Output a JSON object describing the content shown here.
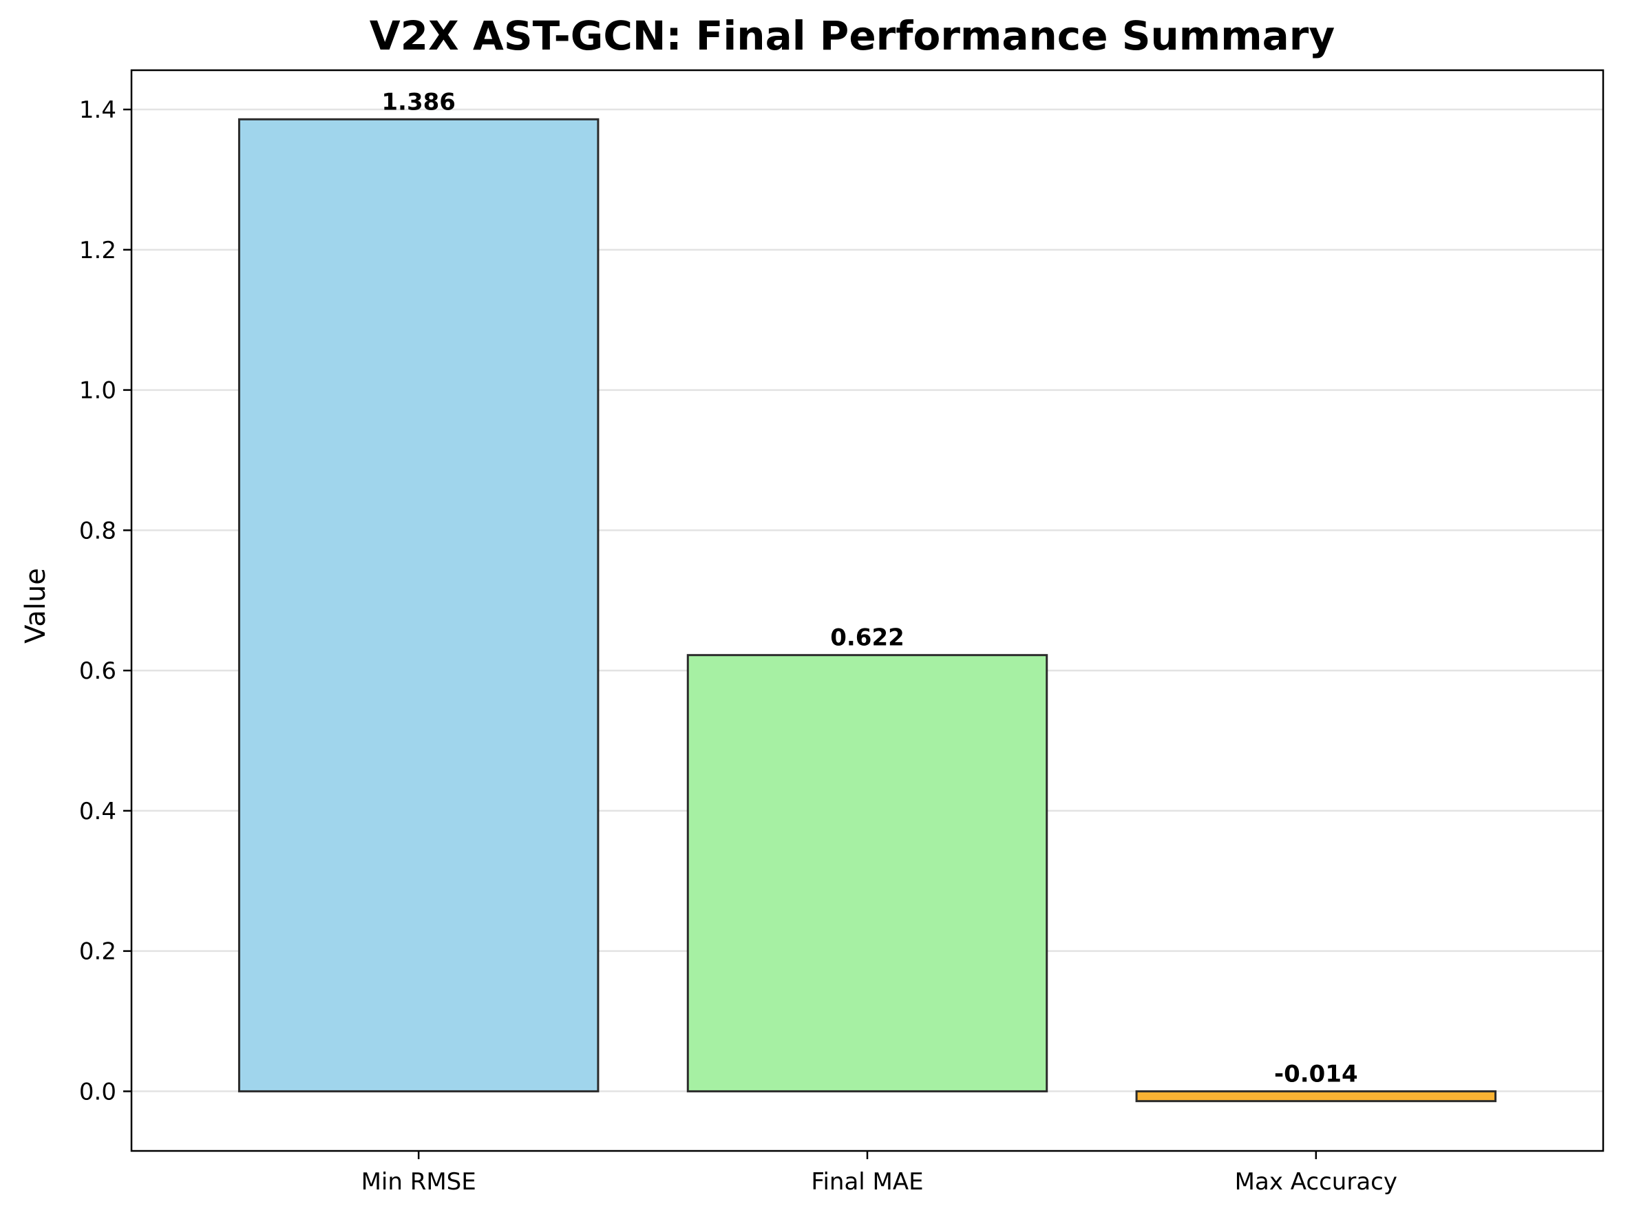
{
  "chart_data": {
    "type": "bar",
    "title": "V2X AST-GCN: Final Performance Summary",
    "xlabel": "",
    "ylabel": "Value",
    "categories": [
      "Min RMSE",
      "Final MAE",
      "Max Accuracy"
    ],
    "values": [
      1.386,
      0.622,
      -0.014
    ],
    "data_labels": [
      "1.386",
      "0.622",
      "-0.014"
    ],
    "bar_colors": [
      "#a0d5ec",
      "#a6f0a3",
      "#f9b233"
    ],
    "bar_edge_color": "#2b2b2b",
    "ylim": [
      -0.085,
      1.456
    ],
    "yticks": [
      0.0,
      0.2,
      0.4,
      0.6,
      0.8,
      1.0,
      1.2,
      1.4
    ],
    "ytick_labels": [
      "0.0",
      "0.2",
      "0.4",
      "0.6",
      "0.8",
      "1.0",
      "1.2",
      "1.4"
    ],
    "grid": "y-major",
    "legend": "none"
  }
}
